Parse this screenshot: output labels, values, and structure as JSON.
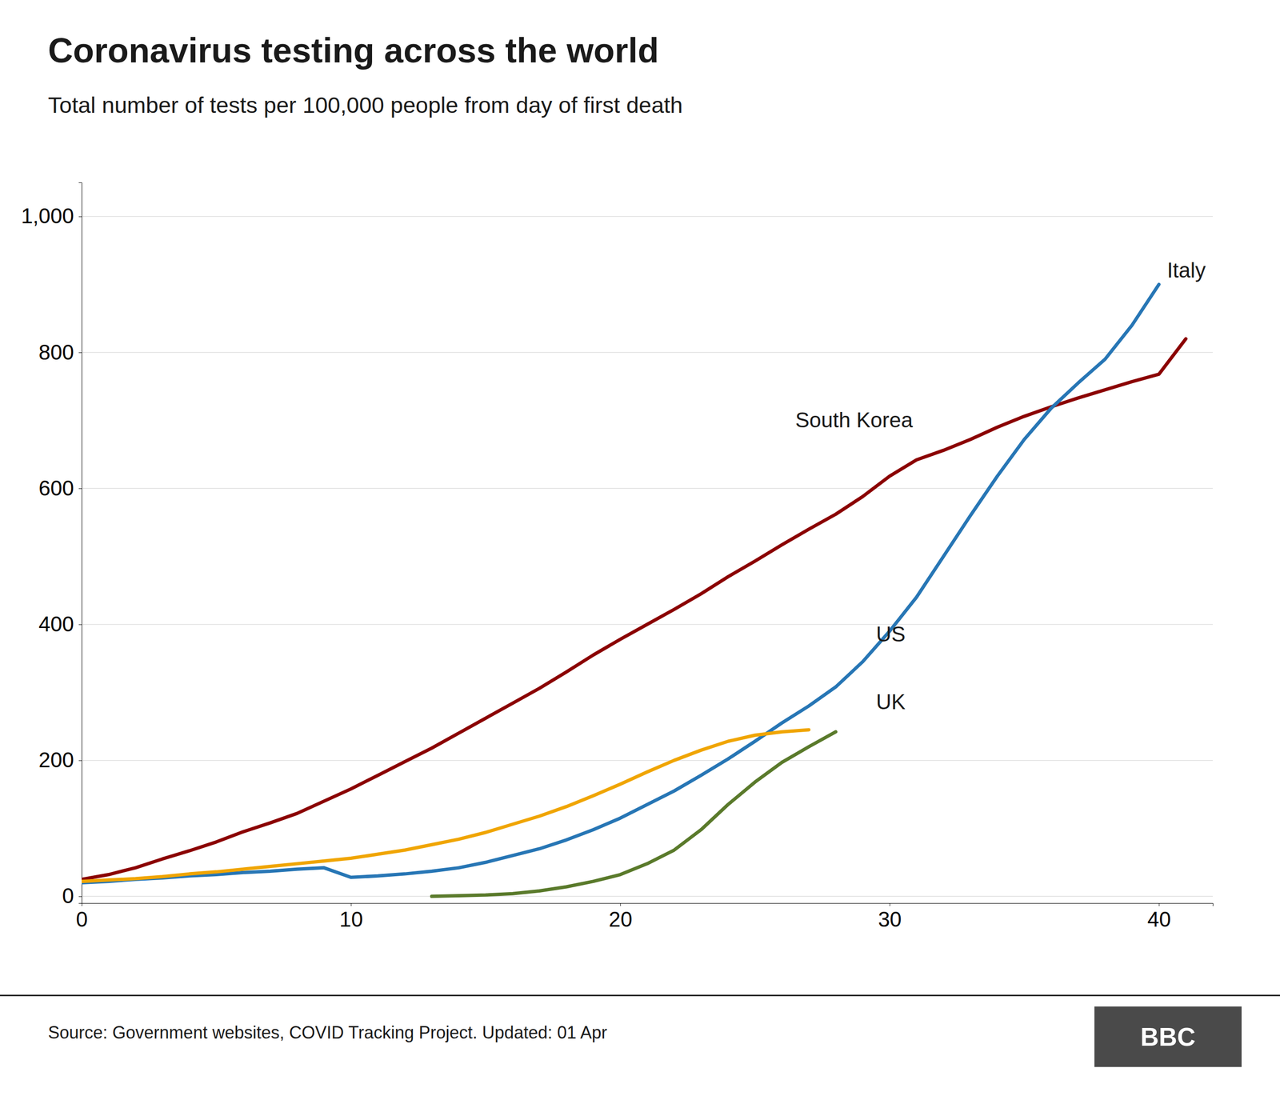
{
  "chart_data": {
    "type": "line",
    "title": "Coronavirus testing across the world",
    "subtitle": "Total number of tests per 100,000 people from day of first death",
    "source": "Source: Government websites, COVID Tracking Project. Updated: 01 Apr",
    "logo": "BBC",
    "xlim": [
      0,
      42
    ],
    "ylim": [
      -10,
      1050
    ],
    "xticks": [
      0,
      10,
      20,
      30,
      40
    ],
    "yticks": [
      0,
      200,
      400,
      600,
      800,
      {
        "value": 1000,
        "label": "1,000"
      }
    ],
    "grid": true,
    "series": [
      {
        "name": "South Korea",
        "color": "#8B0000",
        "x": [
          0,
          1,
          2,
          3,
          4,
          5,
          6,
          7,
          8,
          9,
          10,
          11,
          12,
          13,
          14,
          15,
          16,
          17,
          18,
          19,
          20,
          21,
          22,
          23,
          24,
          25,
          26,
          27,
          28,
          29,
          30,
          31,
          32,
          33,
          34,
          35,
          36,
          37,
          38,
          39,
          40,
          41
        ],
        "values": [
          25,
          32,
          42,
          55,
          67,
          80,
          95,
          108,
          122,
          140,
          158,
          178,
          198,
          218,
          240,
          262,
          284,
          306,
          330,
          355,
          378,
          400,
          422,
          445,
          470,
          493,
          517,
          540,
          562,
          588,
          618,
          642,
          656,
          672,
          690,
          706,
          720,
          733,
          745,
          757,
          768,
          820
        ]
      },
      {
        "name": "Italy",
        "color": "#2776b5",
        "x": [
          0,
          1,
          2,
          3,
          4,
          5,
          6,
          7,
          8,
          9,
          10,
          11,
          12,
          13,
          14,
          15,
          16,
          17,
          18,
          19,
          20,
          21,
          22,
          23,
          24,
          25,
          26,
          27,
          28,
          29,
          30,
          31,
          32,
          33,
          34,
          35,
          36,
          37,
          38,
          39,
          40
        ],
        "values": [
          20,
          22,
          25,
          27,
          30,
          32,
          35,
          37,
          40,
          42,
          28,
          30,
          33,
          37,
          42,
          50,
          60,
          70,
          83,
          98,
          115,
          135,
          155,
          178,
          202,
          228,
          255,
          280,
          308,
          345,
          390,
          440,
          500,
          560,
          618,
          672,
          718,
          755,
          790,
          840,
          900
        ]
      },
      {
        "name": "US",
        "color": "#f0a500",
        "x": [
          0,
          1,
          2,
          3,
          4,
          5,
          6,
          7,
          8,
          9,
          10,
          11,
          12,
          13,
          14,
          15,
          16,
          17,
          18,
          19,
          20,
          21,
          22,
          23,
          24,
          25,
          26,
          27
        ],
        "values": [
          22,
          24,
          26,
          29,
          33,
          36,
          40,
          44,
          48,
          52,
          56,
          62,
          68,
          76,
          84,
          94,
          106,
          118,
          132,
          148,
          165,
          183,
          200,
          215,
          228,
          237,
          242,
          245
        ]
      },
      {
        "name": "UK",
        "color": "#5a7a2b",
        "x": [
          13,
          14,
          15,
          16,
          17,
          18,
          19,
          20,
          21,
          22,
          23,
          24,
          25,
          26,
          27,
          28
        ],
        "values": [
          0,
          1,
          2,
          4,
          8,
          14,
          22,
          32,
          48,
          68,
          98,
          135,
          168,
          197,
          220,
          242
        ]
      }
    ],
    "annotations": [
      {
        "text": "South Korea",
        "x": 26.5,
        "y": 690
      },
      {
        "text": "Italy",
        "x": 40.3,
        "y": 910
      },
      {
        "text": "US",
        "x": 29.5,
        "y": 375
      },
      {
        "text": "UK",
        "x": 29.5,
        "y": 275
      }
    ]
  }
}
